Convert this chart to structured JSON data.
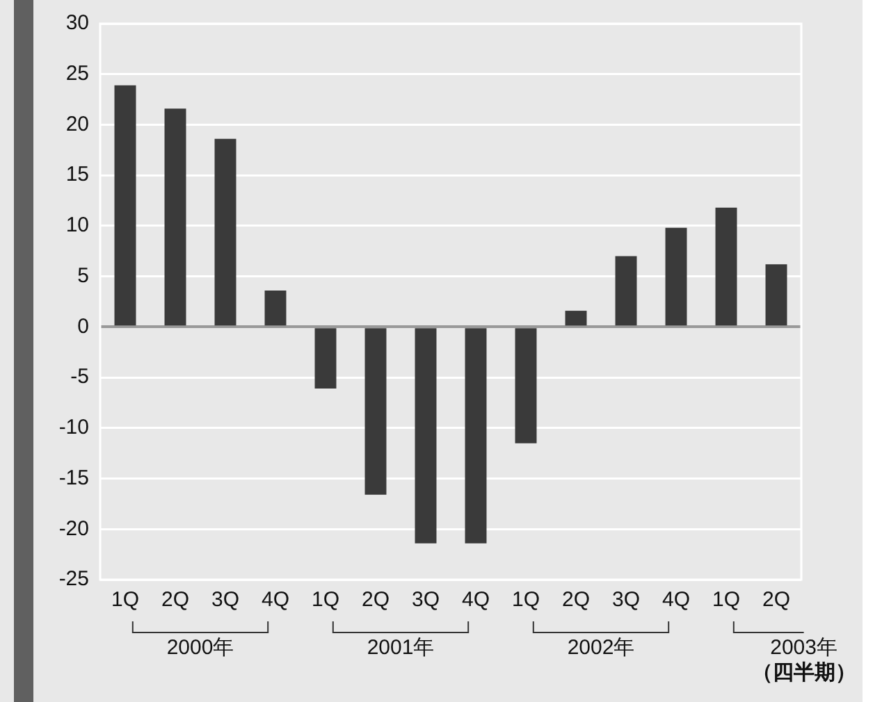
{
  "chart_data": {
    "type": "bar",
    "xlabel": "（四半期）",
    "categories": [
      "1Q",
      "2Q",
      "3Q",
      "4Q",
      "1Q",
      "2Q",
      "3Q",
      "4Q",
      "1Q",
      "2Q",
      "3Q",
      "4Q",
      "1Q",
      "2Q"
    ],
    "values": [
      23.9,
      21.6,
      18.6,
      3.6,
      -6.1,
      -16.6,
      -21.4,
      -21.4,
      -11.5,
      1.6,
      7.0,
      9.8,
      11.8,
      6.2
    ],
    "color": "#3a3a3a",
    "ylim": [
      -25,
      30
    ],
    "yticks": [
      -25,
      -20,
      -15,
      -10,
      -5,
      0,
      5,
      10,
      15,
      20,
      25,
      30
    ],
    "grid": "y",
    "legend": false,
    "annotations": [
      "2000年",
      "2001年",
      "2002年",
      "2003年"
    ]
  }
}
